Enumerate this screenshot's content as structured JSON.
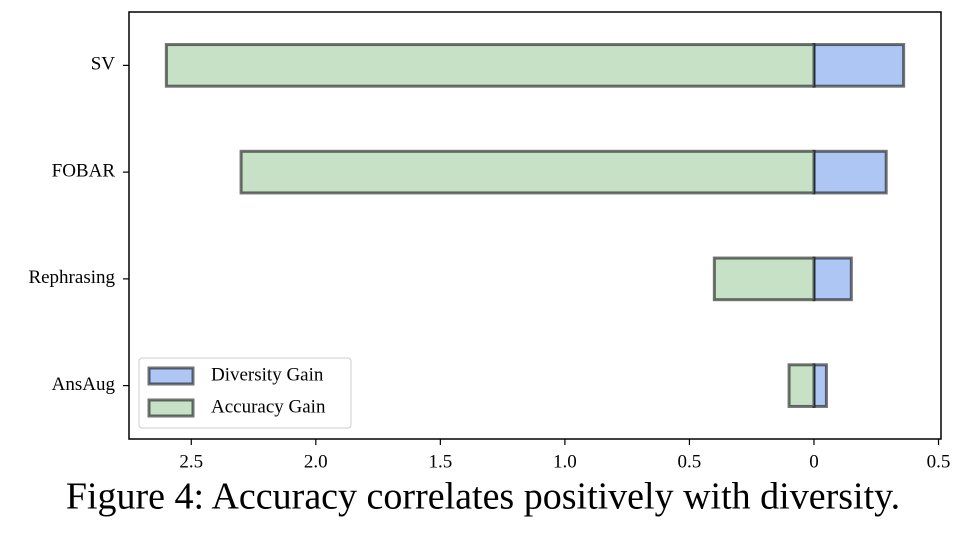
{
  "chart_data": {
    "type": "hbar",
    "categories": [
      "SV",
      "FOBAR",
      "Rephrasing",
      "AnsAug"
    ],
    "series": [
      {
        "name": "Diversity Gain",
        "color": "#aec6f4",
        "values": [
          0.36,
          0.29,
          0.15,
          0.05
        ]
      },
      {
        "name": "Accuracy Gain",
        "color": "#c6e1c6",
        "values": [
          -2.6,
          -2.3,
          -0.4,
          -0.1
        ]
      }
    ],
    "xlim": [
      -2.75,
      0.51
    ],
    "xticks": [
      {
        "value": -2.5,
        "label": "2.5"
      },
      {
        "value": -2.0,
        "label": "2.0"
      },
      {
        "value": -1.5,
        "label": "1.5"
      },
      {
        "value": -1.0,
        "label": "1.0"
      },
      {
        "value": -0.5,
        "label": "0.5"
      },
      0,
      0.5
    ],
    "grid": false,
    "legend": "lower left",
    "caption": "Figure 4: Accuracy correlates positively with diversity."
  }
}
